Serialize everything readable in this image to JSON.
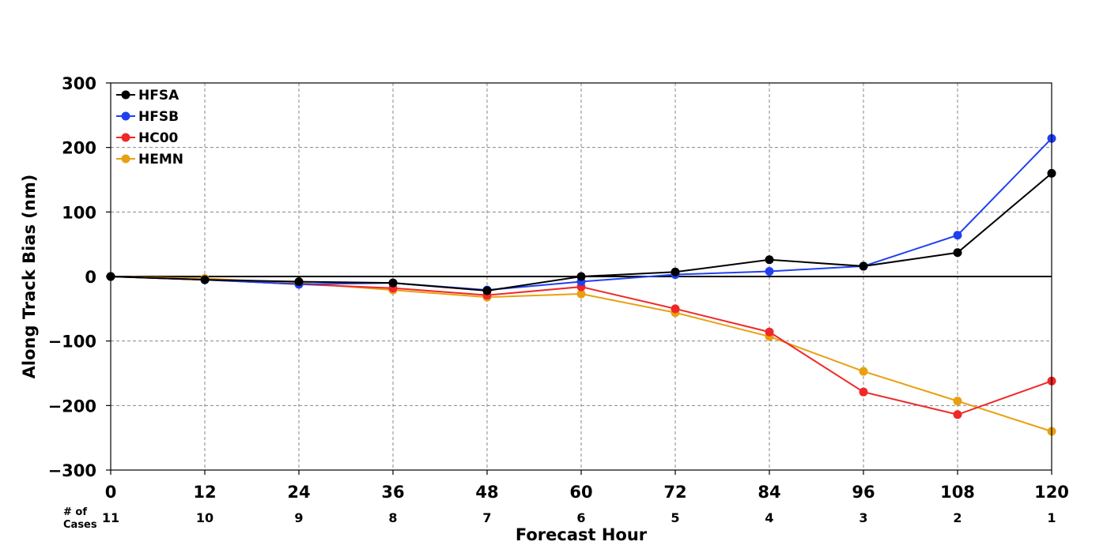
{
  "chart_data": {
    "type": "line",
    "xlabel": "Forecast Hour",
    "ylabel": "Along Track Bias (nm)",
    "x": [
      0,
      12,
      24,
      36,
      48,
      60,
      72,
      84,
      96,
      108,
      120
    ],
    "xlim": [
      0,
      120
    ],
    "ylim": [
      -300,
      300
    ],
    "yticks": [
      -300,
      -200,
      -100,
      0,
      100,
      200,
      300
    ],
    "ytick_labels": [
      "−300",
      "−200",
      "−100",
      "0",
      "100",
      "200",
      "300"
    ],
    "grid": true,
    "legend_position": "top-left",
    "cases_header": [
      "# of",
      "Cases"
    ],
    "num_cases": [
      11,
      10,
      9,
      8,
      7,
      6,
      5,
      4,
      3,
      2,
      1
    ],
    "series": [
      {
        "name": "HEMN",
        "color": "#e8a010",
        "values": [
          0,
          -3,
          -10,
          -21,
          -32,
          -27,
          -56,
          -93,
          -147,
          -193,
          -240
        ]
      },
      {
        "name": "HC00",
        "color": "#f02828",
        "values": [
          0,
          -5,
          -12,
          -18,
          -29,
          -16,
          -50,
          -86,
          -179,
          -214,
          -162
        ]
      },
      {
        "name": "HFSB",
        "color": "#2040f0",
        "values": [
          0,
          -5,
          -12,
          -10,
          -21,
          -8,
          3,
          8,
          16,
          64,
          214
        ]
      },
      {
        "name": "HFSA",
        "color": "#000000",
        "values": [
          0,
          -5,
          -8,
          -10,
          -22,
          0,
          7,
          26,
          16,
          37,
          160
        ]
      }
    ],
    "legend_order": [
      "HFSA",
      "HFSB",
      "HC00",
      "HEMN"
    ]
  }
}
